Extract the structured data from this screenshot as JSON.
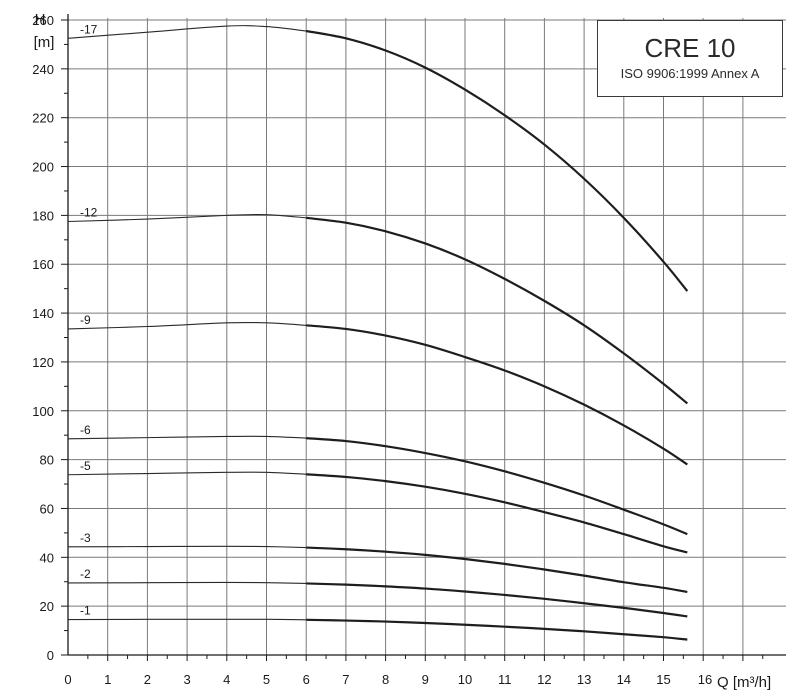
{
  "chart_data": {
    "type": "line",
    "title": "CRE 10",
    "subtitle": "ISO 9906:1999 Annex A",
    "ylabel_symbol": "H",
    "ylabel_unit": "[m]",
    "xlabel": "Q [m³/h]",
    "xlabel_tick_prefix": "16",
    "xlim": [
      0,
      18
    ],
    "ylim": [
      0,
      270
    ],
    "x_ticks": [
      0,
      1,
      2,
      3,
      4,
      5,
      6,
      7,
      8,
      9,
      10,
      11,
      12,
      13,
      14,
      15
    ],
    "y_ticks": [
      0,
      20,
      40,
      60,
      80,
      100,
      120,
      140,
      160,
      180,
      200,
      220,
      240,
      260
    ],
    "grid": true,
    "operating_range_start_x": 6,
    "series": [
      {
        "name": "-17",
        "points": [
          [
            0,
            252.5
          ],
          [
            2,
            255
          ],
          [
            4,
            257.5
          ],
          [
            5,
            257.3
          ],
          [
            6,
            255.5
          ],
          [
            7,
            252.5
          ],
          [
            8,
            247.5
          ],
          [
            9,
            240.5
          ],
          [
            10,
            231.5
          ],
          [
            11,
            221
          ],
          [
            12,
            209
          ],
          [
            13,
            195
          ],
          [
            14,
            179
          ],
          [
            15,
            161
          ],
          [
            15.6,
            149
          ]
        ]
      },
      {
        "name": "-12",
        "points": [
          [
            0,
            177.5
          ],
          [
            2,
            178.5
          ],
          [
            4,
            180
          ],
          [
            5,
            180.3
          ],
          [
            6,
            179
          ],
          [
            7,
            177
          ],
          [
            8,
            173.5
          ],
          [
            9,
            168.5
          ],
          [
            10,
            162
          ],
          [
            11,
            154
          ],
          [
            12,
            145
          ],
          [
            13,
            135
          ],
          [
            14,
            123.5
          ],
          [
            15,
            111
          ],
          [
            15.6,
            103
          ]
        ]
      },
      {
        "name": "-9",
        "points": [
          [
            0,
            133.5
          ],
          [
            2,
            134.5
          ],
          [
            4,
            136
          ],
          [
            5,
            136
          ],
          [
            6,
            135
          ],
          [
            7,
            133.5
          ],
          [
            8,
            130.8
          ],
          [
            9,
            127
          ],
          [
            10,
            122
          ],
          [
            11,
            116.5
          ],
          [
            12,
            110
          ],
          [
            13,
            102.5
          ],
          [
            14,
            94
          ],
          [
            15,
            84.5
          ],
          [
            15.6,
            78
          ]
        ]
      },
      {
        "name": "-6",
        "points": [
          [
            0,
            88.5
          ],
          [
            2,
            89
          ],
          [
            4,
            89.5
          ],
          [
            5,
            89.5
          ],
          [
            6,
            88.8
          ],
          [
            7,
            87.6
          ],
          [
            8,
            85.5
          ],
          [
            9,
            82.7
          ],
          [
            10,
            79.3
          ],
          [
            11,
            75.2
          ],
          [
            12,
            70.5
          ],
          [
            13,
            65.3
          ],
          [
            14,
            59.5
          ],
          [
            15,
            53.5
          ],
          [
            15.6,
            49.5
          ]
        ]
      },
      {
        "name": "-5",
        "points": [
          [
            0,
            73.8
          ],
          [
            2,
            74.3
          ],
          [
            4,
            74.8
          ],
          [
            5,
            74.8
          ],
          [
            6,
            74
          ],
          [
            7,
            72.9
          ],
          [
            8,
            71.2
          ],
          [
            9,
            68.9
          ],
          [
            10,
            66
          ],
          [
            11,
            62.5
          ],
          [
            12,
            58.5
          ],
          [
            13,
            54.3
          ],
          [
            14,
            49.5
          ],
          [
            15,
            44.5
          ],
          [
            15.6,
            42
          ]
        ]
      },
      {
        "name": "-3",
        "points": [
          [
            0,
            44.3
          ],
          [
            2,
            44.4
          ],
          [
            4,
            44.5
          ],
          [
            5,
            44.4
          ],
          [
            6,
            44
          ],
          [
            7,
            43.3
          ],
          [
            8,
            42.3
          ],
          [
            9,
            41
          ],
          [
            10,
            39.3
          ],
          [
            11,
            37.3
          ],
          [
            12,
            35
          ],
          [
            13,
            32.5
          ],
          [
            14,
            29.8
          ],
          [
            15,
            27.5
          ],
          [
            15.6,
            25.8
          ]
        ]
      },
      {
        "name": "-2",
        "points": [
          [
            0,
            29.5
          ],
          [
            2,
            29.6
          ],
          [
            4,
            29.7
          ],
          [
            5,
            29.6
          ],
          [
            6,
            29.3
          ],
          [
            7,
            28.8
          ],
          [
            8,
            28.1
          ],
          [
            9,
            27.2
          ],
          [
            10,
            26
          ],
          [
            11,
            24.6
          ],
          [
            12,
            23
          ],
          [
            13,
            21.2
          ],
          [
            14,
            19.3
          ],
          [
            15,
            17.2
          ],
          [
            15.6,
            15.8
          ]
        ]
      },
      {
        "name": "-1",
        "points": [
          [
            0,
            14.5
          ],
          [
            2,
            14.6
          ],
          [
            4,
            14.6
          ],
          [
            5,
            14.6
          ],
          [
            6,
            14.4
          ],
          [
            7,
            14.1
          ],
          [
            8,
            13.7
          ],
          [
            9,
            13.1
          ],
          [
            10,
            12.4
          ],
          [
            11,
            11.6
          ],
          [
            12,
            10.7
          ],
          [
            13,
            9.7
          ],
          [
            14,
            8.5
          ],
          [
            15,
            7.3
          ],
          [
            15.6,
            6.3
          ]
        ]
      }
    ]
  }
}
